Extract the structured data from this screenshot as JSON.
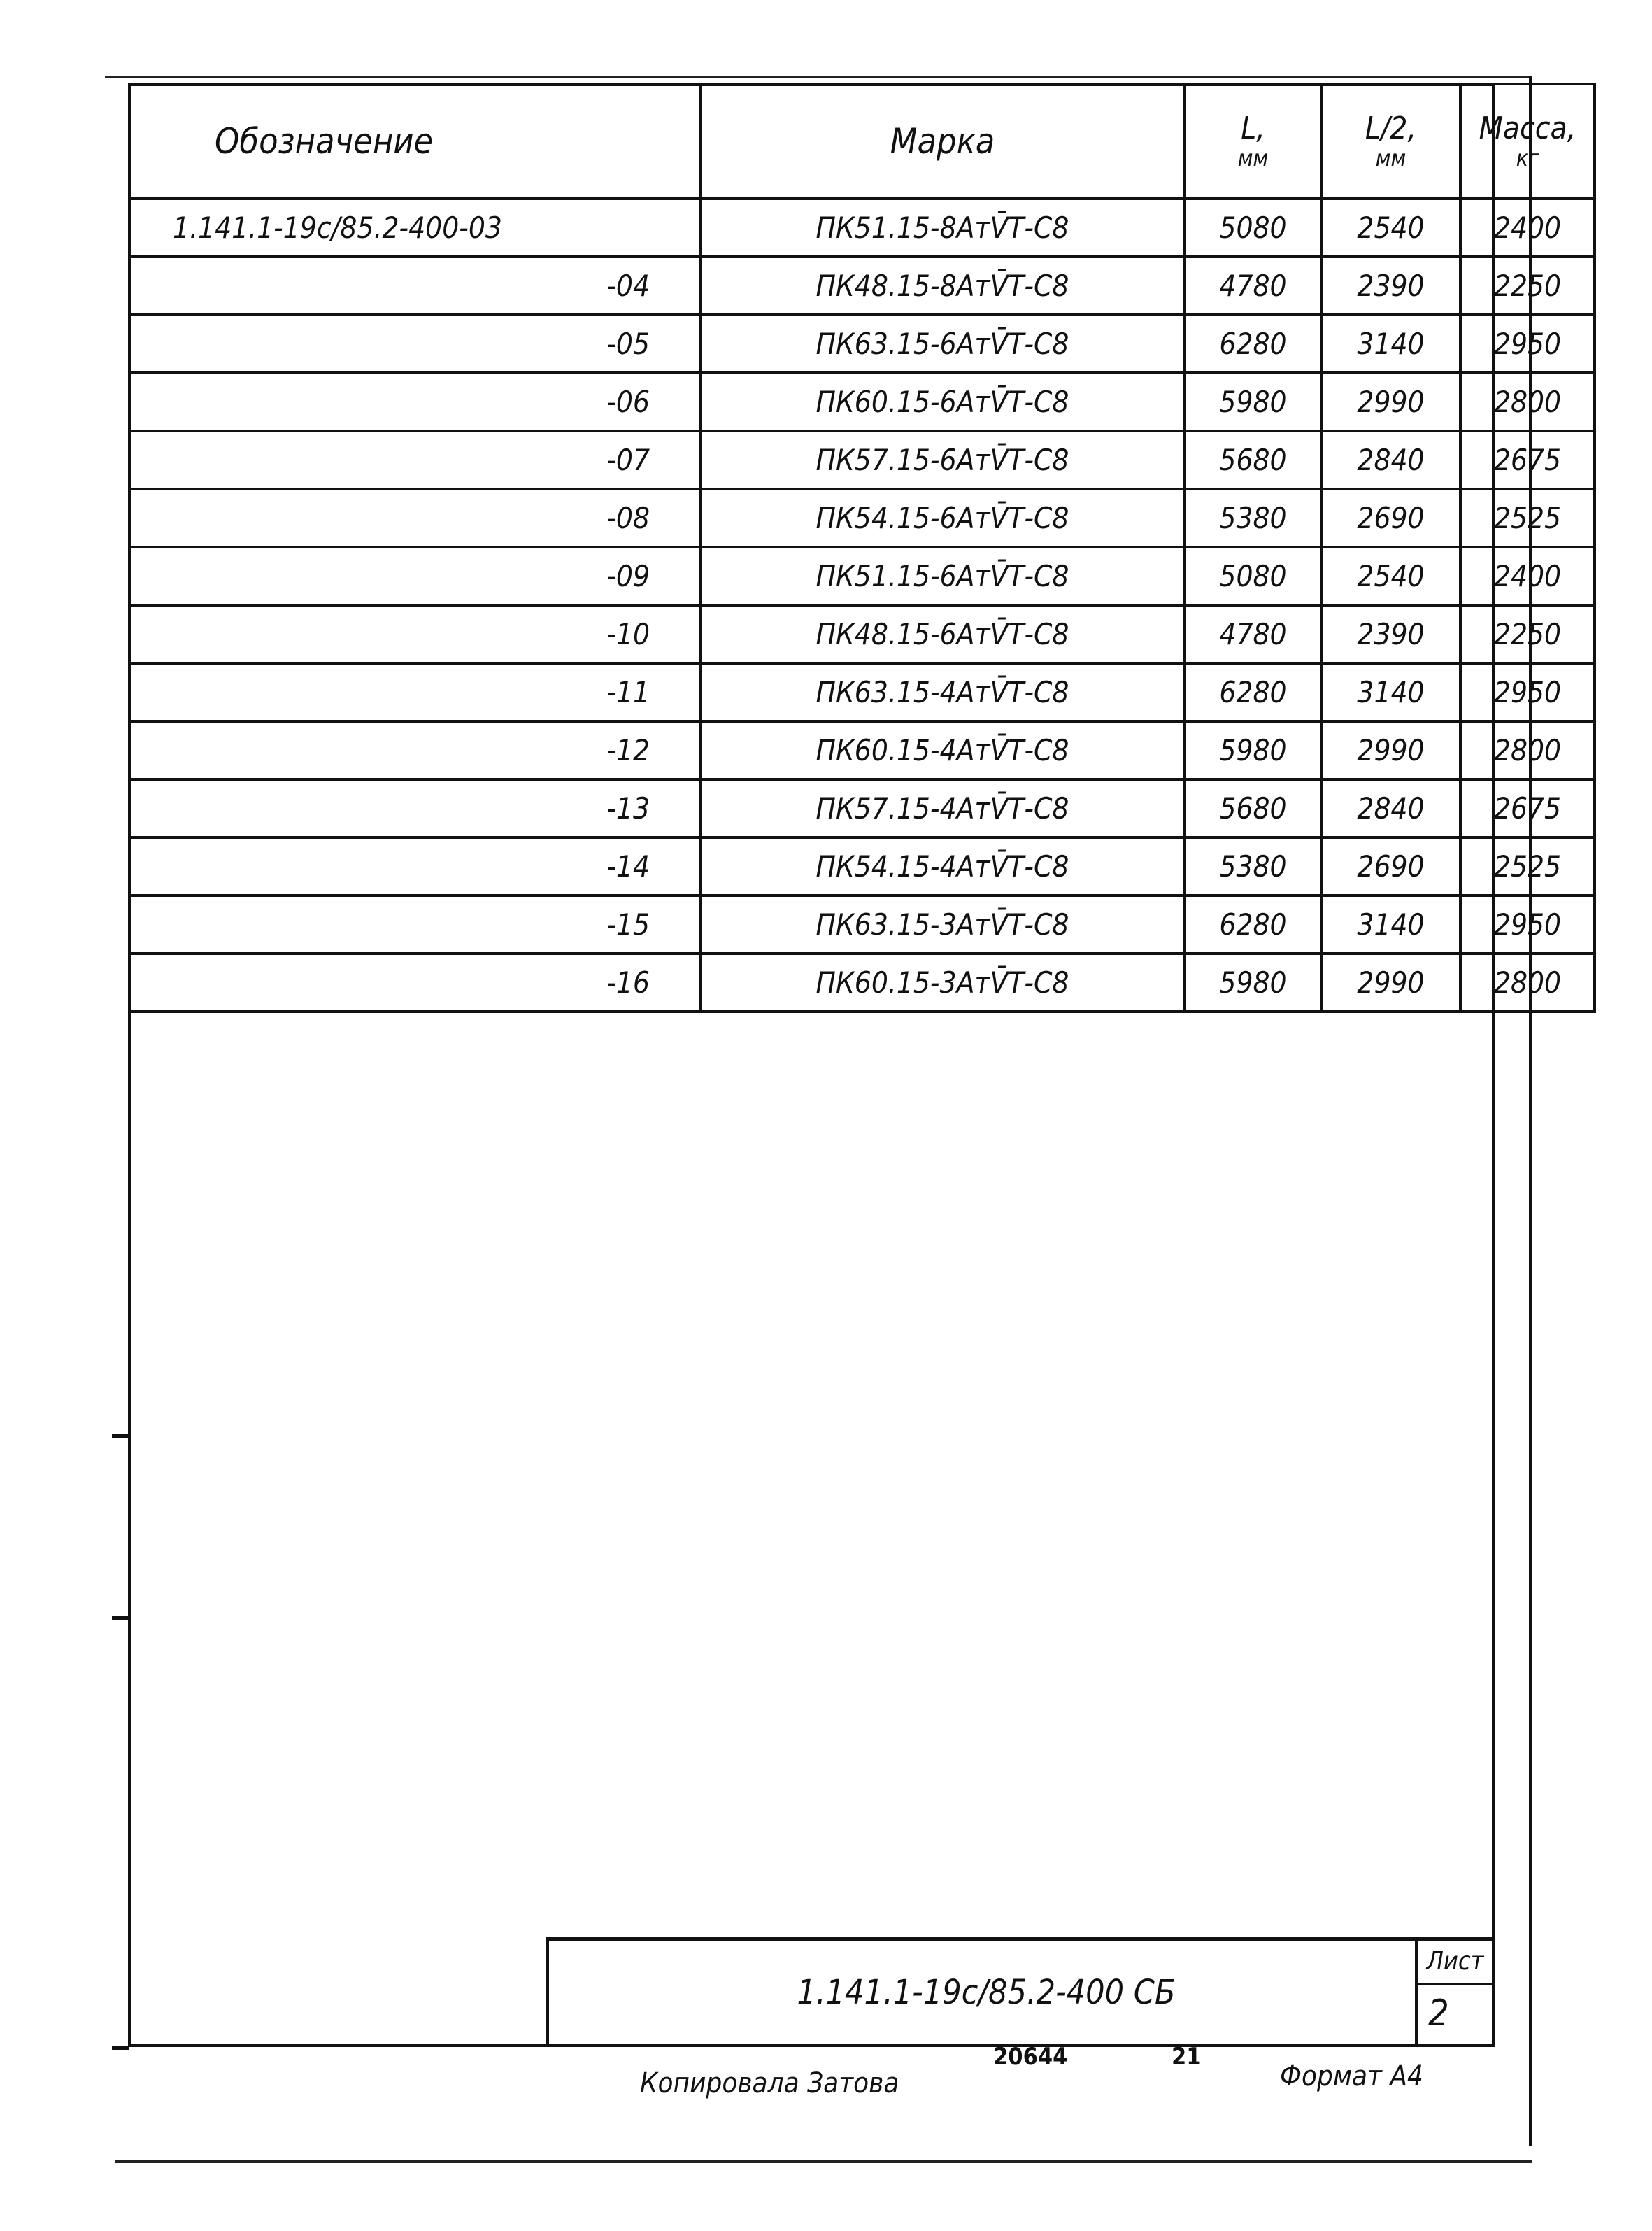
{
  "table": {
    "headers": {
      "designation": "Обозначение",
      "mark": "Марка",
      "length": "L,",
      "length_unit": "мм",
      "half_length": "L/2,",
      "half_length_unit": "мм",
      "mass": "Масса,",
      "mass_unit": "кг"
    },
    "rows": [
      {
        "designation": "1.141.1-19с/85.2-400-03",
        "mark": "ПК51.15-8АтV̄Т-С8",
        "length": "5080",
        "half_length": "2540",
        "mass": "2400"
      },
      {
        "designation": "-04",
        "mark": "ПК48.15-8АтV̄Т-С8",
        "length": "4780",
        "half_length": "2390",
        "mass": "2250"
      },
      {
        "designation": "-05",
        "mark": "ПК63.15-6АтV̄Т-С8",
        "length": "6280",
        "half_length": "3140",
        "mass": "2950"
      },
      {
        "designation": "-06",
        "mark": "ПК60.15-6АтV̄Т-С8",
        "length": "5980",
        "half_length": "2990",
        "mass": "2800"
      },
      {
        "designation": "-07",
        "mark": "ПК57.15-6АтV̄Т-С8",
        "length": "5680",
        "half_length": "2840",
        "mass": "2675"
      },
      {
        "designation": "-08",
        "mark": "ПК54.15-6АтV̄Т-С8",
        "length": "5380",
        "half_length": "2690",
        "mass": "2525"
      },
      {
        "designation": "-09",
        "mark": "ПК51.15-6АтV̄Т-С8",
        "length": "5080",
        "half_length": "2540",
        "mass": "2400"
      },
      {
        "designation": "-10",
        "mark": "ПК48.15-6АтV̄Т-С8",
        "length": "4780",
        "half_length": "2390",
        "mass": "2250"
      },
      {
        "designation": "-11",
        "mark": "ПК63.15-4АтV̄Т-С8",
        "length": "6280",
        "half_length": "3140",
        "mass": "2950"
      },
      {
        "designation": "-12",
        "mark": "ПК60.15-4АтV̄Т-С8",
        "length": "5980",
        "half_length": "2990",
        "mass": "2800"
      },
      {
        "designation": "-13",
        "mark": "ПК57.15-4АтV̄Т-С8",
        "length": "5680",
        "half_length": "2840",
        "mass": "2675"
      },
      {
        "designation": "-14",
        "mark": "ПК54.15-4АтV̄Т-С8",
        "length": "5380",
        "half_length": "2690",
        "mass": "2525"
      },
      {
        "designation": "-15",
        "mark": "ПК63.15-3АтV̄Т-С8",
        "length": "6280",
        "half_length": "3140",
        "mass": "2950"
      },
      {
        "designation": "-16",
        "mark": "ПК60.15-3АтV̄Т-С8",
        "length": "5980",
        "half_length": "2990",
        "mass": "2800"
      }
    ]
  },
  "title_block": {
    "document_code": "1.141.1-19с/85.2-400 СБ",
    "sheet_label": "Лист",
    "sheet_number": "2"
  },
  "footer": {
    "copied_by": "Копировала Затова",
    "order_number": "20644",
    "sheet_count_mark": "21",
    "format": "Формат А4"
  }
}
